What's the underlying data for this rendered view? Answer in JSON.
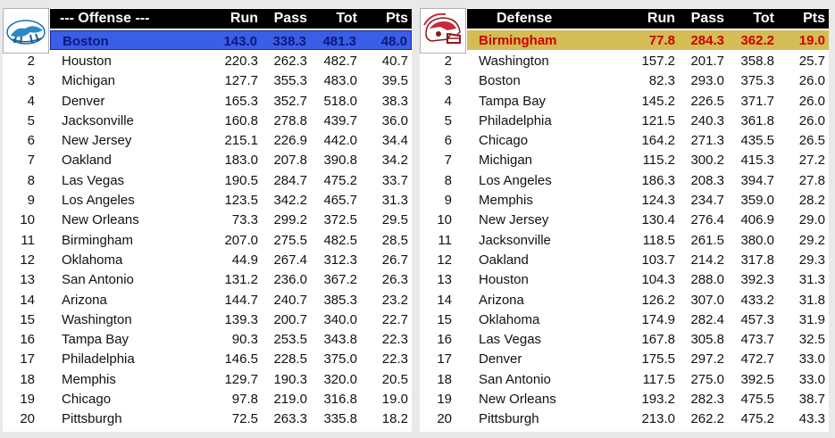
{
  "offense": {
    "header": {
      "title": "--- Offense ---",
      "run": "Run",
      "pass": "Pass",
      "tot": "Tot",
      "pts": "Pts"
    },
    "logo": "boston-team-logo",
    "top": {
      "team": "Boston",
      "run": "143.0",
      "pass": "338.3",
      "tot": "481.3",
      "pts": "48.0"
    },
    "rows": [
      {
        "rank": "2",
        "team": "Houston",
        "run": "220.3",
        "pass": "262.3",
        "tot": "482.7",
        "pts": "40.7"
      },
      {
        "rank": "3",
        "team": "Michigan",
        "run": "127.7",
        "pass": "355.3",
        "tot": "483.0",
        "pts": "39.5"
      },
      {
        "rank": "4",
        "team": "Denver",
        "run": "165.3",
        "pass": "352.7",
        "tot": "518.0",
        "pts": "38.3"
      },
      {
        "rank": "5",
        "team": "Jacksonville",
        "run": "160.8",
        "pass": "278.8",
        "tot": "439.7",
        "pts": "36.0"
      },
      {
        "rank": "6",
        "team": "New Jersey",
        "run": "215.1",
        "pass": "226.9",
        "tot": "442.0",
        "pts": "34.4"
      },
      {
        "rank": "7",
        "team": "Oakland",
        "run": "183.0",
        "pass": "207.8",
        "tot": "390.8",
        "pts": "34.2"
      },
      {
        "rank": "8",
        "team": "Las Vegas",
        "run": "190.5",
        "pass": "284.7",
        "tot": "475.2",
        "pts": "33.7"
      },
      {
        "rank": "9",
        "team": "Los Angeles",
        "run": "123.5",
        "pass": "342.2",
        "tot": "465.7",
        "pts": "31.3"
      },
      {
        "rank": "10",
        "team": "New Orleans",
        "run": "73.3",
        "pass": "299.2",
        "tot": "372.5",
        "pts": "29.5"
      },
      {
        "rank": "11",
        "team": "Birmingham",
        "run": "207.0",
        "pass": "275.5",
        "tot": "482.5",
        "pts": "28.5"
      },
      {
        "rank": "12",
        "team": "Oklahoma",
        "run": "44.9",
        "pass": "267.4",
        "tot": "312.3",
        "pts": "26.7"
      },
      {
        "rank": "13",
        "team": "San Antonio",
        "run": "131.2",
        "pass": "236.0",
        "tot": "367.2",
        "pts": "26.3"
      },
      {
        "rank": "14",
        "team": "Arizona",
        "run": "144.7",
        "pass": "240.7",
        "tot": "385.3",
        "pts": "23.2"
      },
      {
        "rank": "15",
        "team": "Washington",
        "run": "139.3",
        "pass": "200.7",
        "tot": "340.0",
        "pts": "22.7"
      },
      {
        "rank": "16",
        "team": "Tampa Bay",
        "run": "90.3",
        "pass": "253.5",
        "tot": "343.8",
        "pts": "22.3"
      },
      {
        "rank": "17",
        "team": "Philadelphia",
        "run": "146.5",
        "pass": "228.5",
        "tot": "375.0",
        "pts": "22.3"
      },
      {
        "rank": "18",
        "team": "Memphis",
        "run": "129.7",
        "pass": "190.3",
        "tot": "320.0",
        "pts": "20.5"
      },
      {
        "rank": "19",
        "team": "Chicago",
        "run": "97.8",
        "pass": "219.0",
        "tot": "316.8",
        "pts": "19.0"
      },
      {
        "rank": "20",
        "team": "Pittsburgh",
        "run": "72.5",
        "pass": "263.3",
        "tot": "335.8",
        "pts": "18.2"
      }
    ]
  },
  "defense": {
    "header": {
      "title": "Defense",
      "run": "Run",
      "pass": "Pass",
      "tot": "Tot",
      "pts": "Pts"
    },
    "logo": "birmingham-team-logo",
    "top": {
      "team": "Birmingham",
      "run": "77.8",
      "pass": "284.3",
      "tot": "362.2",
      "pts": "19.0"
    },
    "rows": [
      {
        "rank": "2",
        "team": "Washington",
        "run": "157.2",
        "pass": "201.7",
        "tot": "358.8",
        "pts": "25.7"
      },
      {
        "rank": "3",
        "team": "Boston",
        "run": "82.3",
        "pass": "293.0",
        "tot": "375.3",
        "pts": "26.0"
      },
      {
        "rank": "4",
        "team": "Tampa Bay",
        "run": "145.2",
        "pass": "226.5",
        "tot": "371.7",
        "pts": "26.0"
      },
      {
        "rank": "5",
        "team": "Philadelphia",
        "run": "121.5",
        "pass": "240.3",
        "tot": "361.8",
        "pts": "26.0"
      },
      {
        "rank": "6",
        "team": "Chicago",
        "run": "164.2",
        "pass": "271.3",
        "tot": "435.5",
        "pts": "26.5"
      },
      {
        "rank": "7",
        "team": "Michigan",
        "run": "115.2",
        "pass": "300.2",
        "tot": "415.3",
        "pts": "27.2"
      },
      {
        "rank": "8",
        "team": "Los Angeles",
        "run": "186.3",
        "pass": "208.3",
        "tot": "394.7",
        "pts": "27.8"
      },
      {
        "rank": "9",
        "team": "Memphis",
        "run": "124.3",
        "pass": "234.7",
        "tot": "359.0",
        "pts": "28.2"
      },
      {
        "rank": "10",
        "team": "New Jersey",
        "run": "130.4",
        "pass": "276.4",
        "tot": "406.9",
        "pts": "29.0"
      },
      {
        "rank": "11",
        "team": "Jacksonville",
        "run": "118.5",
        "pass": "261.5",
        "tot": "380.0",
        "pts": "29.2"
      },
      {
        "rank": "12",
        "team": "Oakland",
        "run": "103.7",
        "pass": "214.2",
        "tot": "317.8",
        "pts": "29.3"
      },
      {
        "rank": "13",
        "team": "Houston",
        "run": "104.3",
        "pass": "288.0",
        "tot": "392.3",
        "pts": "31.3"
      },
      {
        "rank": "14",
        "team": "Arizona",
        "run": "126.2",
        "pass": "307.0",
        "tot": "433.2",
        "pts": "31.8"
      },
      {
        "rank": "15",
        "team": "Oklahoma",
        "run": "174.9",
        "pass": "282.4",
        "tot": "457.3",
        "pts": "31.9"
      },
      {
        "rank": "16",
        "team": "Las Vegas",
        "run": "167.8",
        "pass": "305.8",
        "tot": "473.7",
        "pts": "32.5"
      },
      {
        "rank": "17",
        "team": "Denver",
        "run": "175.5",
        "pass": "297.2",
        "tot": "472.7",
        "pts": "33.0"
      },
      {
        "rank": "18",
        "team": "San Antonio",
        "run": "117.5",
        "pass": "275.0",
        "tot": "392.5",
        "pts": "33.0"
      },
      {
        "rank": "19",
        "team": "New Orleans",
        "run": "193.2",
        "pass": "282.3",
        "tot": "475.5",
        "pts": "38.7"
      },
      {
        "rank": "20",
        "team": "Pittsburgh",
        "run": "213.0",
        "pass": "262.2",
        "tot": "475.2",
        "pts": "43.3"
      }
    ]
  }
}
